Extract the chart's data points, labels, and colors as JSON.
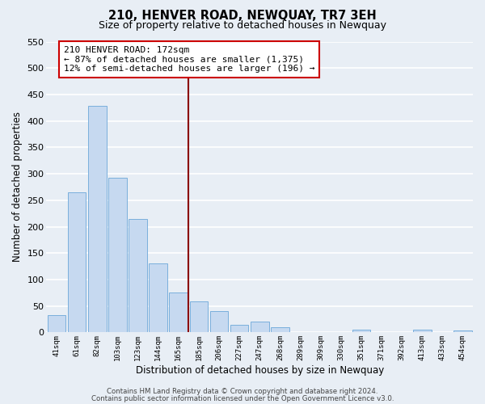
{
  "title": "210, HENVER ROAD, NEWQUAY, TR7 3EH",
  "subtitle": "Size of property relative to detached houses in Newquay",
  "bar_labels": [
    "41sqm",
    "61sqm",
    "82sqm",
    "103sqm",
    "123sqm",
    "144sqm",
    "165sqm",
    "185sqm",
    "206sqm",
    "227sqm",
    "247sqm",
    "268sqm",
    "289sqm",
    "309sqm",
    "330sqm",
    "351sqm",
    "371sqm",
    "392sqm",
    "413sqm",
    "433sqm",
    "454sqm"
  ],
  "bar_values": [
    32,
    265,
    428,
    293,
    214,
    130,
    76,
    59,
    40,
    14,
    21,
    10,
    0,
    0,
    0,
    5,
    0,
    0,
    5,
    0,
    4
  ],
  "bar_color": "#c6d9f0",
  "bar_edge_color": "#7aafdc",
  "xlabel": "Distribution of detached houses by size in Newquay",
  "ylabel": "Number of detached properties",
  "ylim": [
    0,
    550
  ],
  "yticks": [
    0,
    50,
    100,
    150,
    200,
    250,
    300,
    350,
    400,
    450,
    500,
    550
  ],
  "vline_color": "#8b0000",
  "annotation_title": "210 HENVER ROAD: 172sqm",
  "annotation_line1": "← 87% of detached houses are smaller (1,375)",
  "annotation_line2": "12% of semi-detached houses are larger (196) →",
  "annotation_box_facecolor": "white",
  "annotation_box_edgecolor": "#cc0000",
  "footer1": "Contains HM Land Registry data © Crown copyright and database right 2024.",
  "footer2": "Contains public sector information licensed under the Open Government Licence v3.0.",
  "background_color": "#e8eef5",
  "grid_color": "white"
}
